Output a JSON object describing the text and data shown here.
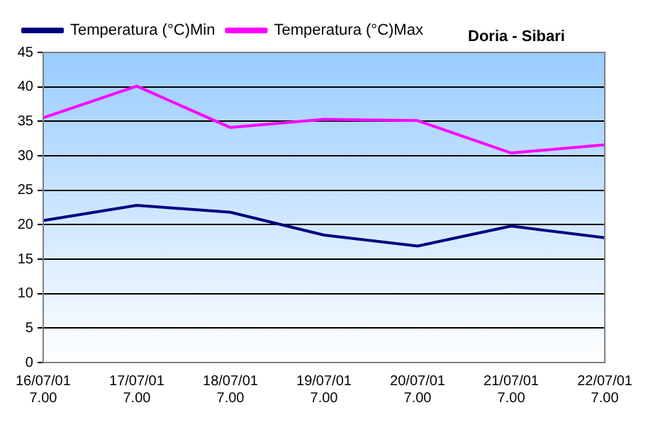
{
  "chart_data": {
    "type": "line",
    "title": "Doria - Sibari",
    "categories": [
      "16/07/01 7.00",
      "17/07/01 7.00",
      "18/07/01 7.00",
      "19/07/01 7.00",
      "20/07/01 7.00",
      "21/07/01 7.00",
      "22/07/01 7.00"
    ],
    "series": [
      {
        "name": "Temperatura (°C)Min",
        "color": "#000080",
        "values": [
          20.6,
          22.8,
          21.8,
          18.5,
          16.9,
          19.8,
          18.1
        ]
      },
      {
        "name": "Temperatura (°C)Max",
        "color": "#ff00ff",
        "values": [
          35.5,
          40.1,
          34.1,
          35.3,
          35.1,
          30.4,
          31.6
        ]
      }
    ],
    "ylim": [
      0,
      45
    ],
    "yticks": [
      0,
      5,
      10,
      15,
      20,
      25,
      30,
      35,
      40,
      45
    ],
    "grid": "y",
    "legend": "top left",
    "marker": "none",
    "line_style": "solid"
  }
}
